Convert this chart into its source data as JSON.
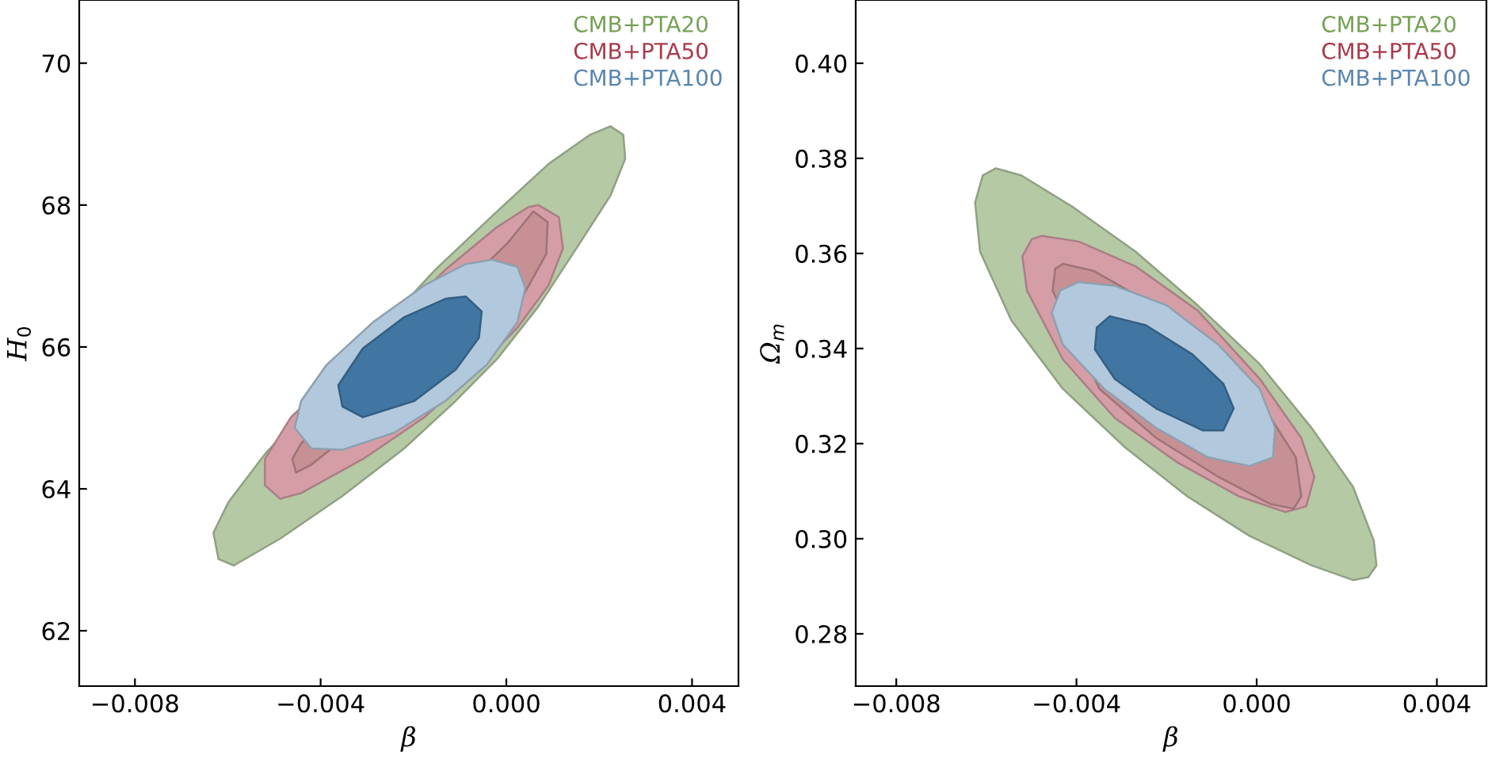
{
  "chart_data": [
    {
      "type": "area",
      "xlabel": "β",
      "ylabel": "H$_{0}$",
      "legend": "top right",
      "xlim": [
        -0.0092,
        0.005
      ],
      "ylim": [
        61.22,
        70.89
      ],
      "xticks": [
        {
          "value": -0.008,
          "label": "−0.008"
        },
        {
          "value": -0.004,
          "label": "−0.004"
        },
        {
          "value": 0,
          "label": "0.000"
        },
        {
          "value": 0.004,
          "label": "0.004"
        }
      ],
      "yticks": [
        62,
        64,
        66,
        68,
        70
      ],
      "series": [
        {
          "name": "CMB+PTA20",
          "color": "#b4c9a4",
          "x": [
            0.00224,
            0.00252,
            0.00256,
            0.00224,
            0.00158,
            0.00069,
            -0.0002,
            -0.00109,
            -0.0022,
            -0.00353,
            -0.00487,
            -0.00587,
            -0.0062,
            -0.00631,
            -0.00598,
            -0.0052,
            -0.0042,
            -0.00287,
            -0.00153,
            -0.0002,
            0.00091,
            0.0018
          ],
          "values": [
            69.11,
            68.99,
            68.65,
            68.13,
            67.46,
            66.57,
            65.83,
            65.24,
            64.57,
            63.9,
            63.3,
            62.92,
            63.01,
            63.38,
            63.82,
            64.49,
            null,
            null,
            67.09,
            67.91,
            68.58,
            68.99
          ]
        },
        {
          "name": "CMB+PTA50",
          "color": "#d59ea6",
          "x": [
            0.00069,
            0.00113,
            0.00122,
            0.00091,
            0.00024,
            -0.00064,
            -0.00176,
            -0.00309,
            -0.00442,
            -0.00487,
            -0.0052,
            -0.0052,
            -0.00464,
            -0.00387,
            -0.00264,
            -0.00131,
            -0.0002,
            0.00047
          ],
          "values": [
            68.0,
            67.83,
            67.39,
            66.87,
            66.27,
            65.68,
            65.01,
            64.42,
            63.94,
            63.86,
            64.05,
            64.42,
            65.01,
            null,
            null,
            67.09,
            67.69,
            67.97
          ]
        },
        {
          "color": "#c69094",
          "x": [
            0.00058,
            0.00089,
            0.00086,
            0.00036,
            -0.00042,
            -0.00153,
            -0.00287,
            -0.0042,
            -0.00453,
            -0.00461,
            -0.00442,
            -0.00353,
            -0.00242,
            -0.00109,
            2e-05
          ],
          "values": [
            67.91,
            67.76,
            67.31,
            66.72,
            null,
            null,
            null,
            64.34,
            64.23,
            64.42,
            64.64,
            null,
            null,
            null,
            67.46
          ]
        },
        {
          "name": "CMB+PTA100",
          "color": "#b2c8dc",
          "x": [
            -0.00031,
            0.00024,
            0.00041,
            0.00024,
            -0.00042,
            -0.00131,
            -0.00242,
            -0.00353,
            -0.0042,
            -0.00456,
            -0.00442,
            -0.00387,
            -0.00287,
            -0.00176,
            -0.00087
          ],
          "values": [
            67.23,
            67.13,
            66.83,
            66.35,
            65.75,
            65.24,
            64.79,
            64.55,
            64.57,
            64.86,
            65.24,
            65.75,
            66.35,
            66.87,
            67.17
          ]
        },
        {
          "color": "#4176a3",
          "x": [
            -0.00087,
            -0.00053,
            -0.00059,
            -0.00109,
            -0.00198,
            -0.00309,
            -0.00353,
            -0.00362,
            -0.00309,
            -0.0022,
            -0.00131
          ],
          "values": [
            66.71,
            66.5,
            66.13,
            65.68,
            65.24,
            65.01,
            65.16,
            65.46,
            65.98,
            66.42,
            66.68
          ]
        }
      ]
    },
    {
      "type": "area",
      "xlabel": "β",
      "ylabel": "Ω$_{m}$",
      "legend": "top right",
      "xlim": [
        -0.0089,
        0.0051
      ],
      "ylim": [
        0.269,
        0.4133
      ],
      "xticks": [
        {
          "value": -0.008,
          "label": "−0.008"
        },
        {
          "value": -0.004,
          "label": "−0.004"
        },
        {
          "value": 0,
          "label": "0.000"
        },
        {
          "value": 0.004,
          "label": "0.004"
        }
      ],
      "yticks": [
        0.28,
        {
          "value": 0.3,
          "label": "0.30"
        },
        0.32,
        0.34,
        0.36,
        0.38,
        {
          "value": 0.4,
          "label": "0.40"
        }
      ],
      "series": [
        {
          "name": "CMB+PTA20",
          "color": "#b4c9a4",
          "x": [
            -0.00579,
            -0.00522,
            -0.00407,
            -0.00269,
            -0.00131,
            7e-05,
            0.00122,
            0.00214,
            0.0026,
            0.00266,
            0.00248,
            0.00214,
            0.00122,
            -0.00016,
            -0.00154,
            -0.00292,
            -0.0043,
            -0.00545,
            -0.00614,
            -0.00625,
            -0.00608
          ],
          "values": [
            0.3779,
            0.3764,
            0.3697,
            0.3604,
            0.3491,
            0.3367,
            0.3233,
            0.3109,
            0.2996,
            0.2944,
            0.2919,
            0.2913,
            0.2944,
            0.3006,
            0.3089,
            0.3192,
            0.3315,
            0.346,
            0.3604,
            0.3707,
            0.3764
          ]
        },
        {
          "name": "CMB+PTA50",
          "color": "#d59ea6",
          "x": [
            -0.00476,
            -0.00395,
            -0.00269,
            -0.00131,
            7e-05,
            0.00099,
            0.00128,
            0.0011,
            0.00064,
            -0.00039,
            -0.00177,
            -0.00315,
            -0.0043,
            -0.0051,
            -0.0052,
            -0.00499
          ],
          "values": [
            0.3637,
            0.3625,
            0.3573,
            0.348,
            0.3336,
            0.3212,
            0.313,
            0.3068,
            0.3056,
            0.3089,
            0.3161,
            0.3254,
            0.3377,
            0.3522,
            0.3594,
            0.363
          ]
        },
        {
          "color": "#c69094",
          "x": [
            -0.0043,
            -0.00361,
            -0.00246,
            -0.00108,
            0.00018,
            0.00087,
            0.00099,
            0.00082,
            0.0003,
            -0.00085,
            -0.00223,
            -0.00349,
            -0.0043,
            -0.00453,
            -0.00447
          ],
          "values": [
            0.3578,
            0.3563,
            0.3501,
            null,
            0.3274,
            0.3171,
            0.3089,
            0.3063,
            0.3073,
            0.313,
            0.3212,
            0.3315,
            null,
            0.3522,
            0.3568
          ]
        },
        {
          "name": "CMB+PTA100",
          "color": "#b2c8dc",
          "x": [
            -0.00395,
            -0.00315,
            -0.002,
            -0.00085,
            7e-05,
            0.00041,
            0.00036,
            -0.00016,
            -0.00108,
            -0.00223,
            -0.00338,
            -0.0043,
            -0.00455,
            -0.00436
          ],
          "values": [
            0.354,
            0.3532,
            0.3491,
            0.3408,
            0.3315,
            0.3233,
            0.3171,
            0.3153,
            0.3171,
            0.3233,
            0.3315,
            0.3408,
            0.3475,
            0.3522
          ]
        },
        {
          "color": "#4176a3",
          "x": [
            -0.00326,
            -0.00246,
            -0.00143,
            -0.00074,
            -0.00051,
            -0.00074,
            -0.0012,
            -0.00223,
            -0.00315,
            -0.00359,
            -0.00355
          ],
          "values": [
            0.3468,
            0.3449,
            0.3388,
            0.3326,
            0.3274,
            0.3228,
            0.3228,
            0.3274,
            0.3336,
            0.3398,
            0.3444
          ]
        }
      ]
    }
  ]
}
